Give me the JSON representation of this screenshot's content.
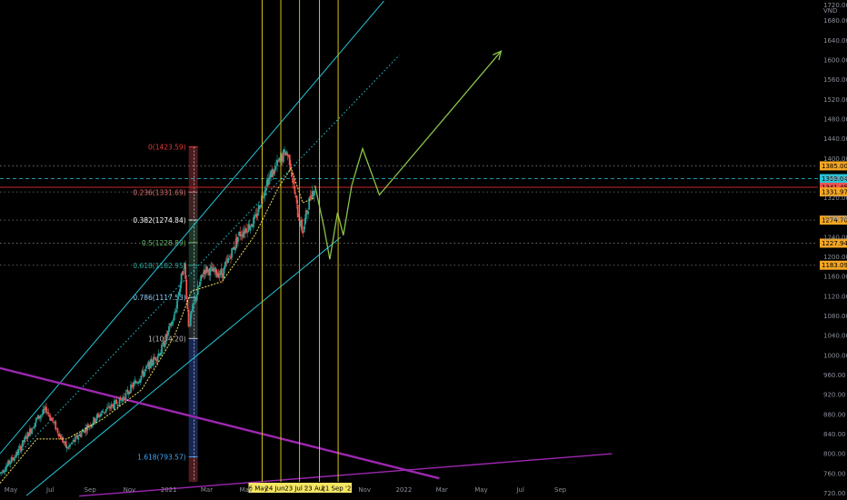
{
  "chart_data": {
    "type": "candlestick",
    "currency_label": "VND",
    "y_top_clipped_label": "1720.00",
    "ylim": [
      706,
      1722
    ],
    "x_range": [
      "2020-04-14",
      "2023-11-20"
    ],
    "y_ticks": [
      "1680.00",
      "1640.00",
      "1600.00",
      "1560.00",
      "1520.00",
      "1480.00",
      "1440.00",
      "1400.00",
      "1360.00",
      "1320.00",
      "1280.00",
      "1240.00",
      "1200.00",
      "1160.00",
      "1120.00",
      "1080.00",
      "1040.00",
      "1000.00",
      "960.00",
      "920.00",
      "880.00",
      "840.00",
      "800.00",
      "760.00",
      "720.00"
    ],
    "y_tick_values": [
      1680,
      1640,
      1600,
      1560,
      1520,
      1480,
      1440,
      1400,
      1360,
      1320,
      1280,
      1240,
      1200,
      1160,
      1120,
      1080,
      1040,
      1000,
      960,
      920,
      880,
      840,
      800,
      760,
      720
    ],
    "x_ticks": [
      {
        "label": "May",
        "date": "2020-05-01"
      },
      {
        "label": "Jul",
        "date": "2020-07-01"
      },
      {
        "label": "Sep",
        "date": "2020-09-01"
      },
      {
        "label": "Nov",
        "date": "2020-11-01"
      },
      {
        "label": "2021",
        "date": "2021-01-01"
      },
      {
        "label": "Mar",
        "date": "2021-03-01"
      },
      {
        "label": "May",
        "date": "2021-05-01"
      },
      {
        "label": "Nov",
        "date": "2021-11-01"
      },
      {
        "label": "2022",
        "date": "2022-01-01"
      },
      {
        "label": "Mar",
        "date": "2022-03-01"
      },
      {
        "label": "May",
        "date": "2022-05-01"
      },
      {
        "label": "Jul",
        "date": "2022-07-01"
      },
      {
        "label": "Sep",
        "date": "2022-09-01"
      }
    ],
    "price_path": [
      [
        "2020-04-14",
        760
      ],
      [
        "2020-05-10",
        800
      ],
      [
        "2020-06-10",
        870
      ],
      [
        "2020-06-25",
        890
      ],
      [
        "2020-07-27",
        810
      ],
      [
        "2020-08-20",
        845
      ],
      [
        "2020-09-20",
        885
      ],
      [
        "2020-10-20",
        910
      ],
      [
        "2020-11-20",
        960
      ],
      [
        "2020-12-20",
        1010
      ],
      [
        "2021-01-10",
        1080
      ],
      [
        "2021-01-25",
        1190
      ],
      [
        "2021-02-01",
        1060
      ],
      [
        "2021-02-10",
        1110
      ],
      [
        "2021-02-25",
        1175
      ],
      [
        "2021-03-25",
        1165
      ],
      [
        "2021-04-20",
        1245
      ],
      [
        "2021-05-15",
        1275
      ],
      [
        "2021-06-01",
        1350
      ],
      [
        "2021-06-20",
        1390
      ],
      [
        "2021-07-02",
        1415
      ],
      [
        "2021-07-08",
        1395
      ],
      [
        "2021-07-20",
        1290
      ],
      [
        "2021-07-28",
        1250
      ],
      [
        "2021-08-03",
        1290
      ],
      [
        "2021-08-10",
        1330
      ],
      [
        "2021-08-16",
        1342
      ]
    ],
    "ma_path": [
      [
        "2020-04-14",
        740
      ],
      [
        "2020-06-10",
        830
      ],
      [
        "2020-07-27",
        830
      ],
      [
        "2020-09-20",
        870
      ],
      [
        "2020-11-20",
        930
      ],
      [
        "2021-01-10",
        1040
      ],
      [
        "2021-02-05",
        1130
      ],
      [
        "2021-03-25",
        1150
      ],
      [
        "2021-05-15",
        1245
      ],
      [
        "2021-06-20",
        1340
      ],
      [
        "2021-07-10",
        1380
      ],
      [
        "2021-07-28",
        1310
      ],
      [
        "2021-08-16",
        1320
      ]
    ],
    "channel": {
      "upper": [
        [
          "2020-04-14",
          800
        ],
        [
          "2021-12-01",
          1720
        ]
      ],
      "lower": [
        [
          "2020-05-25",
          715
        ],
        [
          "2021-09-25",
          1240
        ]
      ],
      "middle_dotted": [
        [
          "2020-04-14",
          760
        ],
        [
          "2021-12-25",
          1610
        ]
      ]
    },
    "projection_path": [
      [
        "2021-08-16",
        1345
      ],
      [
        "2021-08-30",
        1260
      ],
      [
        "2021-09-08",
        1195
      ],
      [
        "2021-09-20",
        1290
      ],
      [
        "2021-09-29",
        1244
      ],
      [
        "2021-10-12",
        1345
      ],
      [
        "2021-10-29",
        1420
      ],
      [
        "2021-11-24",
        1326
      ],
      [
        "2022-06-01",
        1618
      ]
    ],
    "trendlines": [
      {
        "color": "#9c27b0",
        "points": [
          [
            "2020-04-14",
            974
          ],
          [
            "2022-02-25",
            750
          ]
        ]
      },
      {
        "color": "#9c27b0",
        "points": [
          [
            "2020-08-15",
            714
          ],
          [
            "2022-11-20",
            800
          ]
        ]
      }
    ],
    "vlines": [
      {
        "date": "2021-05-26",
        "label": "26 May '21"
      },
      {
        "date": "2021-06-24",
        "label": "24 Jun '21"
      },
      {
        "date": "2021-07-23",
        "label": "23 Jul '21"
      },
      {
        "date": "2021-08-23",
        "label": "23 Aug '2"
      },
      {
        "date": "2021-09-21",
        "label": "21 Sep '21"
      }
    ],
    "vline_orange": "2021-07-23",
    "fibonacci": {
      "x_start": "2021-02-01",
      "x_end": "2021-02-15",
      "levels": [
        {
          "ratio": "0",
          "label": "0(1423.59)",
          "price": 1423.59,
          "color": "#e53935"
        },
        {
          "ratio": "0.236",
          "label": "0.236(1331.69)",
          "price": 1331.69,
          "color": "#e57373"
        },
        {
          "ratio": "0.382",
          "label": "0.382(1274.84)",
          "price": 1274.84,
          "color": "#ffffff"
        },
        {
          "ratio": "0.5",
          "label": "0.5(1228.89)",
          "price": 1228.89,
          "color": "#66bb6a"
        },
        {
          "ratio": "0.618",
          "label": "0.618(1182.95)",
          "price": 1182.95,
          "color": "#26a69a"
        },
        {
          "ratio": "0.786",
          "label": "0.786(1117.53)",
          "price": 1117.53,
          "color": "#90caf9"
        },
        {
          "ratio": "1",
          "label": "1(1034.20)",
          "price": 1034.2,
          "color": "#bdbdbd"
        },
        {
          "ratio": "1.618",
          "label": "1.618(793.57)",
          "price": 793.57,
          "color": "#42a5f5"
        }
      ]
    },
    "horizontal_levels": [
      {
        "price": 1385.0,
        "label": "1385.00",
        "badge": "#f5a623",
        "line_color": "#777777",
        "style": "dotted"
      },
      {
        "price": 1359.04,
        "label": "1359.04",
        "badge": "#26c6da",
        "line_color": "#26c6da",
        "style": "dashed"
      },
      {
        "price": 1341.45,
        "label": "1341.45",
        "badge": "#ef5350",
        "line_color": "#c62828",
        "style": "solid"
      },
      {
        "price": 1331.97,
        "label": "1331.97",
        "badge": "#f5a623",
        "line_color": "#777777",
        "style": "dotted"
      },
      {
        "price": 1274.7,
        "label": "1274.70",
        "badge": "#f5a623",
        "line_color": "#777777",
        "style": "dotted"
      },
      {
        "price": 1227.94,
        "label": "1227.94",
        "badge": "#f5a623",
        "line_color": "#777777",
        "style": "dotted"
      },
      {
        "price": 1183.09,
        "label": "1183.09",
        "badge": "#f5a623",
        "line_color": "#777777",
        "style": "dotted"
      }
    ],
    "colors": {
      "up": "#26a69a",
      "down": "#ef5350",
      "channel": "#26c6da",
      "ma": "#f5e663",
      "projection": "#8bc34a",
      "vline": "#d4c21a",
      "vline_orange": "#ff9800",
      "date_badge": "#f5e663"
    }
  }
}
